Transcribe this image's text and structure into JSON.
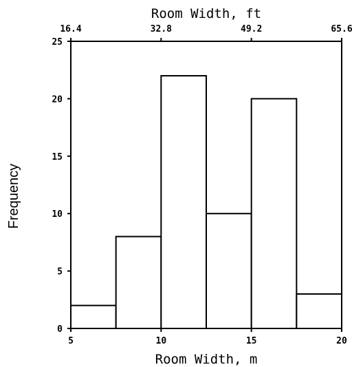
{
  "chart_data": {
    "type": "bar",
    "title": "",
    "xlabel": "Room Width, m",
    "xlabel_top": "Room Width, ft",
    "ylabel": "Frequency",
    "xlim": [
      5,
      20
    ],
    "ylim": [
      0,
      25
    ],
    "x_ticks": [
      "5",
      "10",
      "15",
      "20"
    ],
    "x_ticks_top": [
      "16.4",
      "32.8",
      "49.2",
      "65.6"
    ],
    "y_ticks": [
      "0",
      "5",
      "10",
      "15",
      "20",
      "25"
    ],
    "bins": [
      {
        "from": 5.0,
        "to": 7.5,
        "value": 2
      },
      {
        "from": 7.5,
        "to": 10.0,
        "value": 8
      },
      {
        "from": 10.0,
        "to": 12.5,
        "value": 22
      },
      {
        "from": 12.5,
        "to": 15.0,
        "value": 10
      },
      {
        "from": 15.0,
        "to": 17.5,
        "value": 20
      },
      {
        "from": 17.5,
        "to": 20.0,
        "value": 3
      }
    ],
    "grid": false,
    "legend": "none",
    "colors": {
      "bar_fill": "#ffffff",
      "stroke": "#000000"
    }
  }
}
